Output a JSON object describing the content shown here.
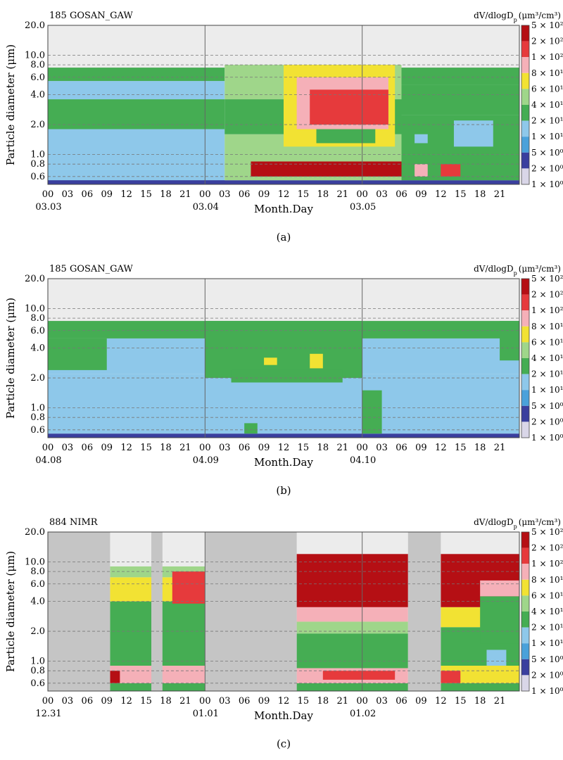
{
  "colors": {
    "scale": [
      "#d9d6e8",
      "#3a3f9e",
      "#4aa1da",
      "#8ec8ea",
      "#45ad53",
      "#9fd68a",
      "#f2e233",
      "#f5b0b8",
      "#e63a3c",
      "#b50f14"
    ],
    "missing": "#c5c5c5",
    "no_data": "#ececec",
    "grid_dash": "#777777",
    "divider": "#666666"
  },
  "colorbar": {
    "title": "dV/dlogD",
    "title_sub": "p",
    "title_unit": "(μm³/cm³)",
    "labels": [
      "5 × 10²",
      "2 × 10²",
      "1 × 10²",
      "8 × 10¹",
      "6 × 10¹",
      "4 × 10¹",
      "2 × 10¹",
      "1 × 10¹",
      "5 × 10⁰",
      "2 × 10⁰",
      "1 × 10⁰"
    ]
  },
  "chart_data": [
    {
      "type": "heatmap",
      "panel": "(a)",
      "station": "185 GOSAN_GAW",
      "xlabel": "Month.Day",
      "ylabel": "Particle diameter (μm)",
      "x_tick_labels": [
        "00",
        "03",
        "06",
        "09",
        "12",
        "15",
        "18",
        "21",
        "00",
        "03",
        "06",
        "09",
        "12",
        "15",
        "18",
        "21",
        "00",
        "03",
        "06",
        "09",
        "12",
        "15",
        "18",
        "21"
      ],
      "day_labels": [
        "03.03",
        "03.04",
        "03.05"
      ],
      "y_tick_labels": [
        "20.0",
        "10.0",
        "8.0",
        "6.0",
        "4.0",
        "2.0",
        "1.0",
        "0.8",
        "0.6"
      ],
      "y_scale": "log",
      "ylim": [
        0.5,
        20
      ],
      "colorbar_unit": "μm³/cm³",
      "colorbar_ticks": [
        500,
        200,
        100,
        80,
        60,
        40,
        20,
        10,
        5,
        2,
        1
      ],
      "missing_intervals_hours": [],
      "regions": [
        {
          "from_hour": 0,
          "to_hour": 27,
          "dmin": 0.5,
          "dmax": 0.9,
          "value": 15
        },
        {
          "from_hour": 0,
          "to_hour": 27,
          "dmin": 0.9,
          "dmax": 1.8,
          "value": 12
        },
        {
          "from_hour": 0,
          "to_hour": 27,
          "dmin": 1.8,
          "dmax": 3.6,
          "value": 22
        },
        {
          "from_hour": 0,
          "to_hour": 27,
          "dmin": 3.6,
          "dmax": 5.5,
          "value": 15
        },
        {
          "from_hour": 0,
          "to_hour": 27,
          "dmin": 5.5,
          "dmax": 7.5,
          "value": 30
        },
        {
          "from_hour": 0,
          "to_hour": 72,
          "dmin": 0.5,
          "dmax": 0.55,
          "value": 3
        },
        {
          "from_hour": 27,
          "to_hour": 54,
          "dmin": 0.55,
          "dmax": 1.6,
          "value": 40
        },
        {
          "from_hour": 27,
          "to_hour": 54,
          "dmin": 1.6,
          "dmax": 3.6,
          "value": 35
        },
        {
          "from_hour": 27,
          "to_hour": 54,
          "dmin": 3.6,
          "dmax": 8,
          "value": 40
        },
        {
          "from_hour": 31,
          "to_hour": 54,
          "dmin": 0.6,
          "dmax": 0.85,
          "value": 250
        },
        {
          "from_hour": 36,
          "to_hour": 53,
          "dmin": 1.2,
          "dmax": 8,
          "value": 70
        },
        {
          "from_hour": 38,
          "to_hour": 52,
          "dmin": 1.8,
          "dmax": 6,
          "value": 90
        },
        {
          "from_hour": 40,
          "to_hour": 52,
          "dmin": 2,
          "dmax": 4.5,
          "value": 120
        },
        {
          "from_hour": 41,
          "to_hour": 50,
          "dmin": 1.3,
          "dmax": 1.8,
          "value": 35
        },
        {
          "from_hour": 54,
          "to_hour": 72,
          "dmin": 0.55,
          "dmax": 1,
          "value": 30
        },
        {
          "from_hour": 54,
          "to_hour": 72,
          "dmin": 1,
          "dmax": 2.5,
          "value": 25
        },
        {
          "from_hour": 54,
          "to_hour": 72,
          "dmin": 2.5,
          "dmax": 5,
          "value": 30
        },
        {
          "from_hour": 54,
          "to_hour": 72,
          "dmin": 5,
          "dmax": 7.5,
          "value": 25
        },
        {
          "from_hour": 56,
          "to_hour": 58,
          "dmin": 1.3,
          "dmax": 1.6,
          "value": 12
        },
        {
          "from_hour": 62,
          "to_hour": 68,
          "dmin": 1.2,
          "dmax": 2.2,
          "value": 12
        },
        {
          "from_hour": 56,
          "to_hour": 58,
          "dmin": 0.6,
          "dmax": 0.8,
          "value": 80
        },
        {
          "from_hour": 60,
          "to_hour": 63,
          "dmin": 0.6,
          "dmax": 0.8,
          "value": 150
        }
      ]
    },
    {
      "type": "heatmap",
      "panel": "(b)",
      "station": "185 GOSAN_GAW",
      "xlabel": "Month.Day",
      "ylabel": "Particle diameter (μm)",
      "x_tick_labels": [
        "00",
        "03",
        "06",
        "09",
        "12",
        "15",
        "18",
        "21",
        "00",
        "03",
        "06",
        "09",
        "12",
        "15",
        "18",
        "21",
        "00",
        "03",
        "06",
        "09",
        "12",
        "15",
        "18",
        "21"
      ],
      "day_labels": [
        "04.08",
        "04.09",
        "04.10"
      ],
      "y_tick_labels": [
        "20.0",
        "10.0",
        "8.0",
        "6.0",
        "4.0",
        "2.0",
        "1.0",
        "0.8",
        "0.6"
      ],
      "y_scale": "log",
      "ylim": [
        0.5,
        20
      ],
      "colorbar_unit": "μm³/cm³",
      "colorbar_ticks": [
        500,
        200,
        100,
        80,
        60,
        40,
        20,
        10,
        5,
        2,
        1
      ],
      "missing_intervals_hours": [],
      "regions": [
        {
          "from_hour": 0,
          "to_hour": 72,
          "dmin": 0.5,
          "dmax": 0.55,
          "value": 3
        },
        {
          "from_hour": 0,
          "to_hour": 72,
          "dmin": 0.55,
          "dmax": 0.9,
          "value": 15
        },
        {
          "from_hour": 0,
          "to_hour": 72,
          "dmin": 0.9,
          "dmax": 2.2,
          "value": 10
        },
        {
          "from_hour": 0,
          "to_hour": 72,
          "dmin": 2.2,
          "dmax": 5,
          "value": 15
        },
        {
          "from_hour": 0,
          "to_hour": 72,
          "dmin": 5,
          "dmax": 7.5,
          "value": 25
        },
        {
          "from_hour": 0,
          "to_hour": 9,
          "dmin": 2.4,
          "dmax": 5,
          "value": 30
        },
        {
          "from_hour": 24,
          "to_hour": 48,
          "dmin": 2,
          "dmax": 7.5,
          "value": 35
        },
        {
          "from_hour": 28,
          "to_hour": 45,
          "dmin": 1.8,
          "dmax": 2.4,
          "value": 25
        },
        {
          "from_hour": 33,
          "to_hour": 35,
          "dmin": 2.7,
          "dmax": 3.2,
          "value": 70
        },
        {
          "from_hour": 40,
          "to_hour": 42,
          "dmin": 2.5,
          "dmax": 3.5,
          "value": 70
        },
        {
          "from_hour": 48,
          "to_hour": 51,
          "dmin": 0.55,
          "dmax": 1.5,
          "value": 30
        },
        {
          "from_hour": 30,
          "to_hour": 32,
          "dmin": 0.55,
          "dmax": 0.7,
          "value": 30
        },
        {
          "from_hour": 69,
          "to_hour": 72,
          "dmin": 3,
          "dmax": 7.5,
          "value": 30
        }
      ]
    },
    {
      "type": "heatmap",
      "panel": "(c)",
      "station": "884 NIMR",
      "xlabel": "Month.Day",
      "ylabel": "Particle diameter (μm)",
      "x_tick_labels": [
        "00",
        "03",
        "06",
        "09",
        "12",
        "15",
        "18",
        "21",
        "00",
        "03",
        "06",
        "09",
        "12",
        "15",
        "18",
        "21",
        "00",
        "03",
        "06",
        "09",
        "12",
        "15",
        "18",
        "21"
      ],
      "day_labels": [
        "12.31",
        "01.01",
        "01.02"
      ],
      "y_tick_labels": [
        "20.0",
        "10.0",
        "8.0",
        "6.0",
        "4.0",
        "2.0",
        "1.0",
        "0.8",
        "0.6"
      ],
      "y_scale": "log",
      "ylim": [
        0.5,
        20
      ],
      "colorbar_unit": "μm³/cm³",
      "colorbar_ticks": [
        500,
        200,
        100,
        80,
        60,
        40,
        20,
        10,
        5,
        2,
        1
      ],
      "missing_intervals_hours": [
        [
          0,
          9.5
        ],
        [
          15.8,
          17.5
        ],
        [
          24,
          38
        ],
        [
          55,
          60
        ]
      ],
      "regions": [
        {
          "from_hour": 9.5,
          "to_hour": 24,
          "dmin": 0.5,
          "dmax": 0.6,
          "value": 20
        },
        {
          "from_hour": 9.5,
          "to_hour": 24,
          "dmin": 0.6,
          "dmax": 0.9,
          "value": 80
        },
        {
          "from_hour": 9.5,
          "to_hour": 24,
          "dmin": 0.9,
          "dmax": 4,
          "value": 35
        },
        {
          "from_hour": 9.5,
          "to_hour": 24,
          "dmin": 4,
          "dmax": 7,
          "value": 60
        },
        {
          "from_hour": 9.5,
          "to_hour": 24,
          "dmin": 7,
          "dmax": 9,
          "value": 40
        },
        {
          "from_hour": 9.5,
          "to_hour": 11,
          "dmin": 0.6,
          "dmax": 0.8,
          "value": 200
        },
        {
          "from_hour": 19,
          "to_hour": 24,
          "dmin": 3.8,
          "dmax": 8,
          "value": 100
        },
        {
          "from_hour": 38,
          "to_hour": 55,
          "dmin": 0.5,
          "dmax": 0.6,
          "value": 20
        },
        {
          "from_hour": 38,
          "to_hour": 55,
          "dmin": 0.6,
          "dmax": 0.85,
          "value": 80
        },
        {
          "from_hour": 38,
          "to_hour": 55,
          "dmin": 0.85,
          "dmax": 1.9,
          "value": 35
        },
        {
          "from_hour": 38,
          "to_hour": 55,
          "dmin": 1.9,
          "dmax": 2.5,
          "value": 40
        },
        {
          "from_hour": 38,
          "to_hour": 55,
          "dmin": 2.5,
          "dmax": 3.5,
          "value": 80
        },
        {
          "from_hour": 38,
          "to_hour": 55,
          "dmin": 3.5,
          "dmax": 12,
          "value": 200
        },
        {
          "from_hour": 42,
          "to_hour": 53,
          "dmin": 0.65,
          "dmax": 0.8,
          "value": 120
        },
        {
          "from_hour": 60,
          "to_hour": 72,
          "dmin": 0.5,
          "dmax": 0.6,
          "value": 20
        },
        {
          "from_hour": 60,
          "to_hour": 72,
          "dmin": 0.6,
          "dmax": 0.9,
          "value": 60
        },
        {
          "from_hour": 60,
          "to_hour": 72,
          "dmin": 0.9,
          "dmax": 2.2,
          "value": 35
        },
        {
          "from_hour": 60,
          "to_hour": 72,
          "dmin": 2.2,
          "dmax": 3.5,
          "value": 70
        },
        {
          "from_hour": 60,
          "to_hour": 72,
          "dmin": 3.5,
          "dmax": 12,
          "value": 200
        },
        {
          "from_hour": 66,
          "to_hour": 72,
          "dmin": 1.5,
          "dmax": 4.5,
          "value": 35
        },
        {
          "from_hour": 66,
          "to_hour": 72,
          "dmin": 4.5,
          "dmax": 6.5,
          "value": 80
        },
        {
          "from_hour": 67,
          "to_hour": 70,
          "dmin": 0.9,
          "dmax": 1.3,
          "value": 12
        },
        {
          "from_hour": 60,
          "to_hour": 63,
          "dmin": 0.6,
          "dmax": 0.8,
          "value": 150
        }
      ]
    }
  ]
}
